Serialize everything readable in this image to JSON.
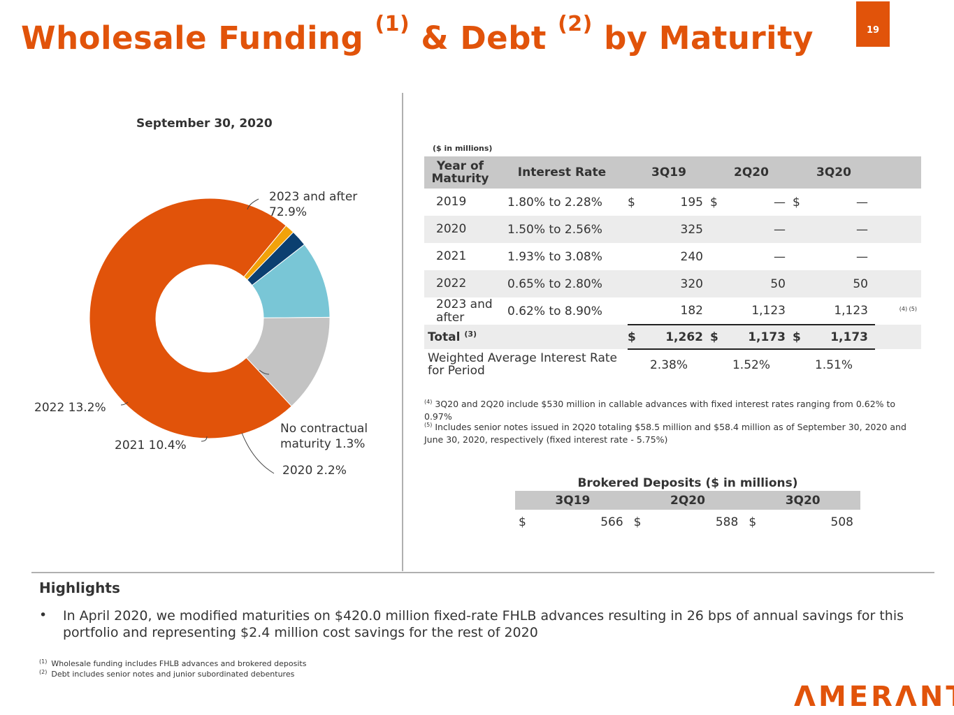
{
  "header": {
    "title_part1": "Wholesale Funding",
    "sup1": "(1)",
    "title_part2": "& Debt",
    "sup2": "(2)",
    "title_part3": "by Maturity",
    "page_number": "19"
  },
  "chart_data": {
    "type": "pie",
    "title": "September 30, 2020",
    "labels": [
      "2023 and after",
      "No contractual maturity",
      "2020",
      "2021",
      "2022"
    ],
    "values": [
      72.9,
      1.3,
      2.2,
      10.4,
      13.2
    ],
    "colors": [
      "#e1530a",
      "#f2a20a",
      "#0b3f70",
      "#79c6d6",
      "#c3c3c3"
    ],
    "label_texts": {
      "y2023_line1": "2023 and after",
      "y2023_line2": "72.9%",
      "nocontract_line1": "No contractual",
      "nocontract_line2": "maturity 1.3%",
      "y2020": "2020 2.2%",
      "y2021": "2021 10.4%",
      "y2022": "2022 13.2%"
    }
  },
  "funding_table": {
    "units": "($ in millions)",
    "headers": {
      "year_line1": "Year of",
      "year_line2": "Maturity",
      "rate": "Interest Rate",
      "p1": "3Q19",
      "p2": "2Q20",
      "p3": "3Q20"
    },
    "rows": [
      {
        "year": "2019",
        "rate": "1.80% to 2.28%",
        "d1": "$",
        "v1": "195",
        "d2": "$",
        "v2": "—",
        "d3": "$",
        "v3": "—",
        "note": ""
      },
      {
        "year": "2020",
        "rate": "1.50% to 2.56%",
        "d1": "",
        "v1": "325",
        "d2": "",
        "v2": "—",
        "d3": "",
        "v3": "—",
        "note": ""
      },
      {
        "year": "2021",
        "rate": "1.93% to 3.08%",
        "d1": "",
        "v1": "240",
        "d2": "",
        "v2": "—",
        "d3": "",
        "v3": "—",
        "note": ""
      },
      {
        "year": "2022",
        "rate": "0.65% to 2.80%",
        "d1": "",
        "v1": "320",
        "d2": "",
        "v2": "50",
        "d3": "",
        "v3": "50",
        "note": ""
      },
      {
        "year_line1": "2023 and",
        "year_line2": "after",
        "rate": "0.62% to 8.90%",
        "d1": "",
        "v1": "182",
        "d2": "",
        "v2": "1,123",
        "d3": "",
        "v3": "1,123",
        "note": "(4) (5)"
      }
    ],
    "total": {
      "label": "Total",
      "sup": "(3)",
      "d1": "$",
      "v1": "1,262",
      "d2": "$",
      "v2": "1,173",
      "d3": "$",
      "v3": "1,173"
    },
    "weighted": {
      "label_line1": "Weighted Average Interest Rate",
      "label_line2": "for Period",
      "v1": "2.38%",
      "v2": "1.52%",
      "v3": "1.51%"
    }
  },
  "table_footnotes": {
    "n4_mark": "(4)",
    "n4_text": "3Q20 and 2Q20 include $530 million in callable advances with fixed interest rates ranging from 0.62% to 0.97%",
    "n5_mark": "(5)",
    "n5_text": "Includes senior notes issued in 2Q20 totaling $58.5 million and $58.4 million as of September 30, 2020 and June 30, 2020, respectively (fixed interest rate - 5.75%)"
  },
  "brokered": {
    "title": "Brokered Deposits ($ in millions)",
    "headers": [
      "3Q19",
      "2Q20",
      "3Q20"
    ],
    "dollar": "$",
    "values": [
      "566",
      "588",
      "508"
    ]
  },
  "highlights": {
    "title": "Highlights",
    "bullet": "•",
    "text": "In April 2020, we modified maturities on $420.0 million fixed-rate FHLB advances resulting in 26 bps of annual savings for this portfolio and representing $2.4 million cost savings for the rest of 2020"
  },
  "footnotes": [
    {
      "mark": "(1)",
      "text": "Wholesale funding includes FHLB advances and brokered deposits"
    },
    {
      "mark": "(2)",
      "text": "Debt includes senior notes and junior subordinated debentures"
    }
  ],
  "brand": {
    "logo_text": "ΛMERΛNT",
    "accent": "#e1530a"
  }
}
